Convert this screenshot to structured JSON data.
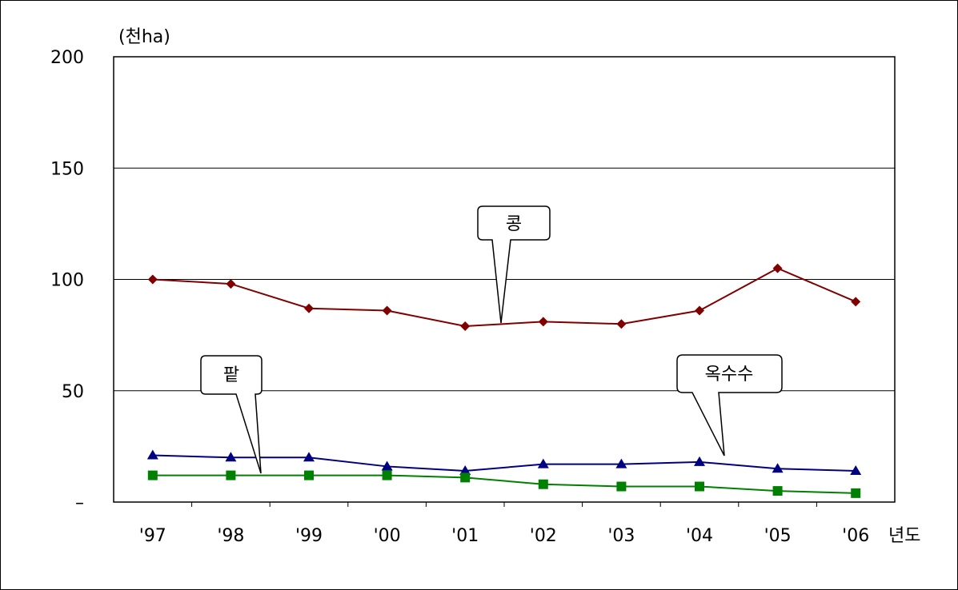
{
  "chart_data": {
    "type": "line",
    "ylabel": "(천ha)",
    "xlabel": "년도",
    "ylim": [
      0,
      200
    ],
    "yticks": [
      "200",
      "150",
      "100",
      "50",
      "–"
    ],
    "categories": [
      "'97",
      "'98",
      "'99",
      "'00",
      "'01",
      "'02",
      "'03",
      "'04",
      "'05",
      "'06"
    ],
    "grid": true,
    "series": [
      {
        "name": "콩",
        "color": "#800000",
        "marker": "diamond",
        "values": [
          100,
          98,
          87,
          86,
          79,
          81,
          80,
          86,
          105,
          90
        ]
      },
      {
        "name": "옥수수",
        "color": "#000080",
        "marker": "triangle",
        "values": [
          21,
          20,
          20,
          16,
          14,
          17,
          17,
          18,
          15,
          14
        ]
      },
      {
        "name": "팥",
        "color": "#008000",
        "marker": "square",
        "values": [
          12,
          12,
          12,
          12,
          11,
          8,
          7,
          7,
          5,
          4
        ]
      }
    ],
    "annotations": [
      "콩",
      "팥",
      "옥수수"
    ]
  }
}
